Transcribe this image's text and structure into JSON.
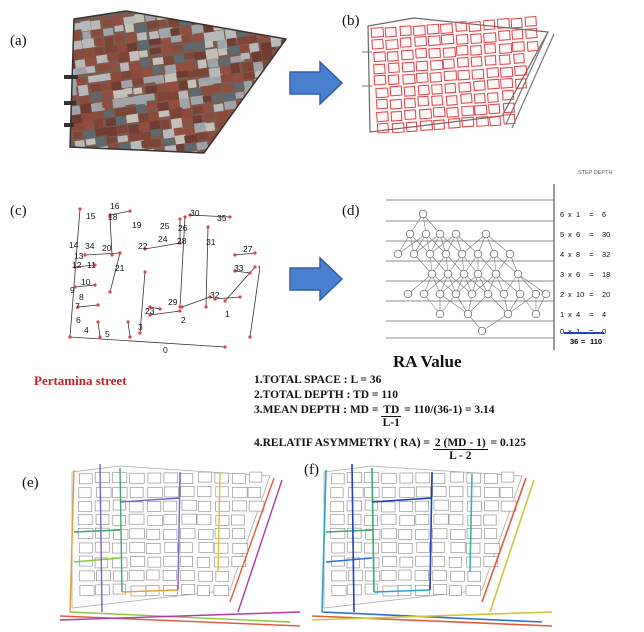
{
  "panels": {
    "a": "(a)",
    "b": "(b)",
    "c": "(c)",
    "d": "(d)",
    "e": "(e)",
    "f": "(f)"
  },
  "colors": {
    "arrow": "#4a7fd0",
    "roof_dark": "#6b3a2e",
    "plot_red": "#d9434a",
    "street_label": "#c0202a",
    "underline": "#1e3fc8"
  },
  "axial_labels": [
    "0",
    "1",
    "2",
    "3",
    "4",
    "5",
    "6",
    "7",
    "8",
    "9",
    "10",
    "11",
    "12",
    "13",
    "14",
    "15",
    "16",
    "17",
    "18",
    "19",
    "20",
    "21",
    "22",
    "23",
    "24",
    "25",
    "26",
    "27",
    "28",
    "29",
    "30",
    "31",
    "32",
    "33",
    "34",
    "35"
  ],
  "step_depth": {
    "title": "STEP DEPTH",
    "rows": [
      {
        "a": "6",
        "b": "1",
        "c": "6"
      },
      {
        "a": "5",
        "b": "6",
        "c": "30"
      },
      {
        "a": "4",
        "b": "8",
        "c": "32"
      },
      {
        "a": "3",
        "b": "6",
        "c": "18"
      },
      {
        "a": "2",
        "b": "10",
        "c": "20"
      },
      {
        "a": "1",
        "b": "4",
        "c": "4"
      },
      {
        "a": "0",
        "b": "1",
        "c": "0"
      }
    ],
    "total_left": "36",
    "total_right": "110",
    "equals": "="
  },
  "street_name": "Pertamina  street",
  "ra": {
    "title": "RA Value",
    "line1": "1.TOTAL SPACE : L = 36",
    "line2": "2.TOTAL DEPTH : TD = 110",
    "line3_prefix": "3.MEAN DEPTH :  MD = ",
    "line3_num": "TD",
    "line3_den": "L-1",
    "line3_suffix": " = 110/(36-1) = 3.14",
    "line4_prefix": "4.RELATIF ASYMMETRY ( RA)  = ",
    "line4_num": "2 (MD - 1)",
    "line4_den": "L - 2",
    "line4_suffix": " = 0.125"
  }
}
